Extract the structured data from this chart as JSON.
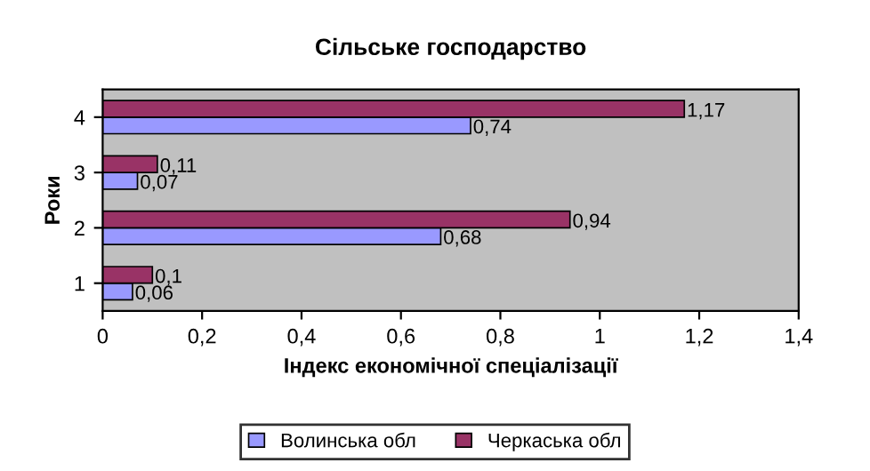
{
  "chart_data": {
    "type": "bar",
    "orientation": "horizontal",
    "title": "Сільське господарство",
    "xlabel": "Індекс економічної спеціалізації",
    "ylabel": "Роки",
    "categories": [
      "4",
      "3",
      "2",
      "1"
    ],
    "series": [
      {
        "name": "Волинська обл",
        "color": "#9999ff",
        "values": [
          0.74,
          0.07,
          0.68,
          0.06
        ],
        "value_labels": [
          "0,74",
          "0,07",
          "0,68",
          "0,06"
        ]
      },
      {
        "name": "Черкаська обл",
        "color": "#993366",
        "values": [
          1.17,
          0.11,
          0.94,
          0.1
        ],
        "value_labels": [
          "1,17",
          "0,11",
          "0,94",
          "0,1"
        ]
      }
    ],
    "xlim": [
      0,
      1.4
    ],
    "xticks": [
      0,
      {
        "value": 0.2,
        "label": "0,2"
      },
      {
        "value": 0.4,
        "label": "0,4"
      },
      {
        "value": 0.6,
        "label": "0,6"
      },
      {
        "value": 0.8,
        "label": "0,8"
      },
      1,
      {
        "value": 1.2,
        "label": "1,2"
      },
      {
        "value": 1.4,
        "label": "1,4"
      }
    ],
    "grid": false,
    "legend": "bottom"
  }
}
